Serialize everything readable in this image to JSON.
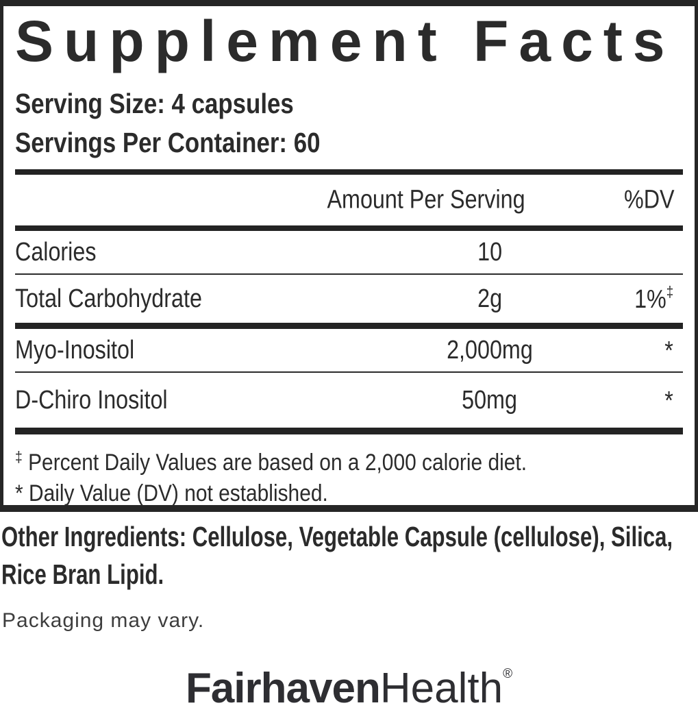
{
  "panel": {
    "title": "Supplement Facts",
    "serving_size": "Serving Size: 4 capsules",
    "servings_per_container": "Servings Per Container: 60",
    "header": {
      "amount": "Amount Per Serving",
      "dv": "%DV"
    },
    "rows": [
      {
        "label": "Calories",
        "amount": "10",
        "dv": "",
        "dv_sup": ""
      },
      {
        "label": "Total Carbohydrate",
        "amount": "2g",
        "dv": "1%",
        "dv_sup": "‡"
      },
      {
        "label": "Myo-Inositol",
        "amount": "2,000mg",
        "dv": "*",
        "dv_sup": ""
      },
      {
        "label": "D-Chiro Inositol",
        "amount": "50mg",
        "dv": "*",
        "dv_sup": ""
      }
    ],
    "footnotes": [
      {
        "sup": "‡",
        "text": "Percent Daily Values are based on a 2,000 calorie diet."
      },
      {
        "sup": "*",
        "text": "Daily Value (DV) not established."
      }
    ]
  },
  "other_ingredients": "Other Ingredients: Cellulose, Vegetable Capsule (cellulose), Silica, Rice Bran Lipid.",
  "packaging_note": "Packaging may vary.",
  "brand": {
    "bold": "Fairhaven",
    "light": "Health",
    "registered": "®"
  },
  "colors": {
    "text": "#2b2b2b",
    "rule": "#232323"
  }
}
